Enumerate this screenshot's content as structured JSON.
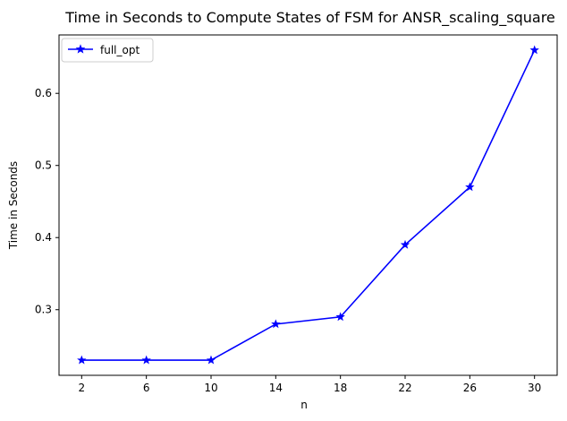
{
  "chart_data": {
    "type": "line",
    "title": "Time in Seconds to Compute States of FSM for ANSR_scaling_square",
    "xlabel": "n",
    "ylabel": "Time in Seconds",
    "x": [
      2,
      6,
      10,
      14,
      18,
      22,
      26,
      30
    ],
    "x_ticks": [
      "2",
      "6",
      "10",
      "14",
      "18",
      "22",
      "26",
      "30"
    ],
    "y_ticks": [
      "0.3",
      "0.4",
      "0.5",
      "0.6"
    ],
    "y_tick_values": [
      0.3,
      0.4,
      0.5,
      0.6
    ],
    "xlim": [
      0.6,
      31.4
    ],
    "ylim": [
      0.209,
      0.681
    ],
    "series": [
      {
        "name": "full_opt",
        "values": [
          0.23,
          0.23,
          0.23,
          0.28,
          0.29,
          0.39,
          0.47,
          0.66
        ],
        "color": "#0000ff",
        "marker": "star"
      }
    ],
    "legend_position": "upper-left",
    "grid": false
  }
}
